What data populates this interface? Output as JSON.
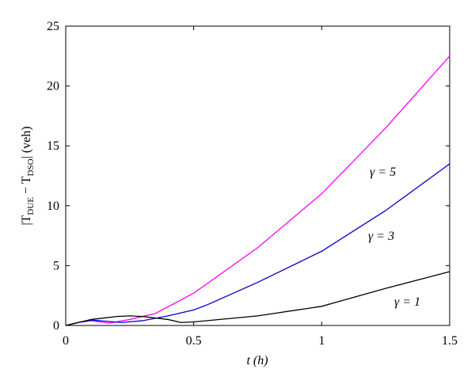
{
  "chart_data": {
    "type": "line",
    "xlabel": "t (h)",
    "ylabel": [
      "|T",
      "DUE",
      " − T",
      "DSO",
      "| (veh)"
    ],
    "xlim": [
      0,
      1.5
    ],
    "xticks": [
      0,
      0.5,
      1,
      1.5
    ],
    "ylim": [
      0,
      25
    ],
    "yticks": [
      0,
      5,
      10,
      15,
      20,
      25
    ],
    "series": [
      {
        "name": "γ = 5",
        "color": "#ff00ff",
        "x": [
          0,
          0.05,
          0.1,
          0.17,
          0.25,
          0.35,
          0.5,
          0.75,
          1.0,
          1.25,
          1.5
        ],
        "values": [
          0,
          0.25,
          0.4,
          0.2,
          0.5,
          1.0,
          2.7,
          6.5,
          11,
          16.5,
          22.5
        ]
      },
      {
        "name": "γ = 3",
        "color": "#0000cc",
        "x": [
          0,
          0.05,
          0.1,
          0.22,
          0.3,
          0.4,
          0.5,
          0.55,
          0.75,
          1.0,
          1.25,
          1.5
        ],
        "values": [
          0,
          0.25,
          0.45,
          0.25,
          0.4,
          0.8,
          1.3,
          1.7,
          3.6,
          6.2,
          9.6,
          13.5
        ]
      },
      {
        "name": "γ = 1",
        "color": "#000000",
        "x": [
          0,
          0.1,
          0.2,
          0.25,
          0.3,
          0.4,
          0.45,
          0.5,
          0.75,
          1.0,
          1.25,
          1.5
        ],
        "values": [
          0,
          0.5,
          0.75,
          0.8,
          0.75,
          0.5,
          0.25,
          0.3,
          0.8,
          1.6,
          3.1,
          4.5
        ]
      }
    ]
  }
}
